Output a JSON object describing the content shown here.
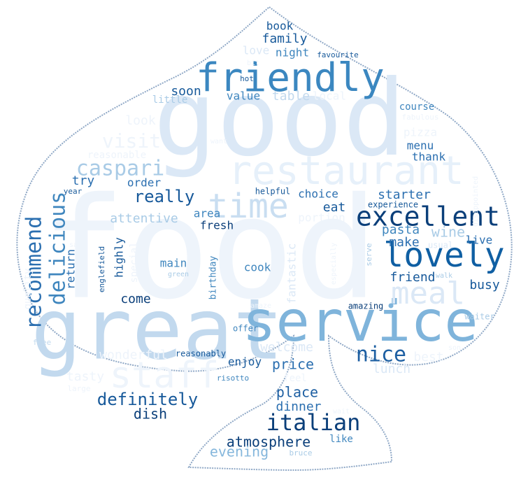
{
  "words": [
    {
      "text": "food",
      "size": 200,
      "color": "#eef4fb"
    },
    {
      "text": "good",
      "size": 150,
      "color": "#dbe8f6"
    },
    {
      "text": "great",
      "size": 120,
      "color": "#c2d9ee"
    },
    {
      "text": "service",
      "size": 80,
      "color": "#7fb4db"
    },
    {
      "text": "restaurant",
      "size": 56,
      "color": "#e6f0fa"
    },
    {
      "text": "staff",
      "size": 52,
      "color": "#eef4fb"
    },
    {
      "text": "friendly",
      "size": 56,
      "color": "#3b87c0"
    },
    {
      "text": "time",
      "size": 48,
      "color": "#c9def1"
    },
    {
      "text": "lovely",
      "size": 48,
      "color": "#0f5fa3"
    },
    {
      "text": "meal",
      "size": 44,
      "color": "#dbe8f6"
    },
    {
      "text": "excellent",
      "size": 38,
      "color": "#0b3f7a"
    },
    {
      "text": "recommend",
      "size": 30,
      "color": "#2b6fb0"
    },
    {
      "text": "delicious",
      "size": 30,
      "color": "#3f86be"
    },
    {
      "text": "caspari",
      "size": 30,
      "color": "#a9cbe6"
    },
    {
      "text": "italian",
      "size": 32,
      "color": "#0b3f7a"
    },
    {
      "text": "nice",
      "size": 30,
      "color": "#1d5fa2"
    },
    {
      "text": "definitely",
      "size": 24,
      "color": "#17599a"
    },
    {
      "text": "really",
      "size": 24,
      "color": "#17599a"
    },
    {
      "text": "visit",
      "size": 28,
      "color": "#eef4fb"
    },
    {
      "text": "atmosphere",
      "size": 20,
      "color": "#0b3f7a"
    },
    {
      "text": "evening",
      "size": 20,
      "color": "#85b7dc"
    },
    {
      "text": "place",
      "size": 20,
      "color": "#1d5fa2"
    },
    {
      "text": "dinner",
      "size": 18,
      "color": "#2b6fb0"
    },
    {
      "text": "dish",
      "size": 20,
      "color": "#0b3f7a"
    },
    {
      "text": "price",
      "size": 20,
      "color": "#2b6fb0"
    },
    {
      "text": "welcome",
      "size": 18,
      "color": "#dbe8f6"
    },
    {
      "text": "lunch",
      "size": 18,
      "color": "#dbe8f6"
    },
    {
      "text": "best",
      "size": 18,
      "color": "#eef4fb"
    },
    {
      "text": "enjoy",
      "size": 16,
      "color": "#17599a"
    },
    {
      "text": "wonderful",
      "size": 18,
      "color": "#eef4fb"
    },
    {
      "text": "tasty",
      "size": 18,
      "color": "#eef4fb"
    },
    {
      "text": "friend",
      "size": 18,
      "color": "#17599a"
    },
    {
      "text": "busy",
      "size": 18,
      "color": "#17599a"
    },
    {
      "text": "make",
      "size": 18,
      "color": "#2b6fb0"
    },
    {
      "text": "pasta",
      "size": 18,
      "color": "#3f86be"
    },
    {
      "text": "wine",
      "size": 20,
      "color": "#a9cbe6"
    },
    {
      "text": "live",
      "size": 16,
      "color": "#2b6fb0"
    },
    {
      "text": "starter",
      "size": 18,
      "color": "#2b6fb0"
    },
    {
      "text": "eat",
      "size": 18,
      "color": "#17599a"
    },
    {
      "text": "choice",
      "size": 16,
      "color": "#2b6fb0"
    },
    {
      "text": "portion",
      "size": 16,
      "color": "#eef4fb"
    },
    {
      "text": "attentive",
      "size": 18,
      "color": "#a9cbe6"
    },
    {
      "text": "area",
      "size": 16,
      "color": "#3f86be"
    },
    {
      "text": "fresh",
      "size": 16,
      "color": "#0b3f7a"
    },
    {
      "text": "try",
      "size": 18,
      "color": "#2b6fb0"
    },
    {
      "text": "order",
      "size": 16,
      "color": "#2b6fb0"
    },
    {
      "text": "menu",
      "size": 16,
      "color": "#2b6fb0"
    },
    {
      "text": "thank",
      "size": 16,
      "color": "#2b6fb0"
    },
    {
      "text": "pizza",
      "size": 16,
      "color": "#eef4fb"
    },
    {
      "text": "course",
      "size": 14,
      "color": "#3f86be"
    },
    {
      "text": "fabulous",
      "size": 11,
      "color": "#eef4fb"
    },
    {
      "text": "family",
      "size": 18,
      "color": "#17599a"
    },
    {
      "text": "book",
      "size": 16,
      "color": "#17599a"
    },
    {
      "text": "night",
      "size": 16,
      "color": "#3f86be"
    },
    {
      "text": "love",
      "size": 16,
      "color": "#dbe8f6"
    },
    {
      "text": "favourite",
      "size": 11,
      "color": "#17599a"
    },
    {
      "text": "bit",
      "size": 10,
      "color": "#eef4fb"
    },
    {
      "text": "hot",
      "size": 11,
      "color": "#17599a"
    },
    {
      "text": "soon",
      "size": 18,
      "color": "#17599a"
    },
    {
      "text": "value",
      "size": 16,
      "color": "#3f86be"
    },
    {
      "text": "table",
      "size": 18,
      "color": "#c2d9ee"
    },
    {
      "text": "local",
      "size": 16,
      "color": "#eef4fb"
    },
    {
      "text": "little",
      "size": 14,
      "color": "#a9cbe6"
    },
    {
      "text": "look",
      "size": 18,
      "color": "#eef4fb"
    },
    {
      "text": "reasonable",
      "size": 14,
      "color": "#eef4fb"
    },
    {
      "text": "want",
      "size": 10,
      "color": "#eef4fb"
    },
    {
      "text": "year",
      "size": 11,
      "color": "#17599a"
    },
    {
      "text": "helpful",
      "size": 12,
      "color": "#17599a"
    },
    {
      "text": "experience",
      "size": 12,
      "color": "#17599a"
    },
    {
      "text": "disappointed",
      "size": 10,
      "color": "#eef4fb"
    },
    {
      "text": "usual",
      "size": 12,
      "color": "#dbe8f6"
    },
    {
      "text": "main",
      "size": 16,
      "color": "#3f86be"
    },
    {
      "text": "cook",
      "size": 16,
      "color": "#3f86be"
    },
    {
      "text": "come",
      "size": 18,
      "color": "#0b3f7a"
    },
    {
      "text": "highly",
      "size": 16,
      "color": "#17599a"
    },
    {
      "text": "return",
      "size": 16,
      "color": "#2b6fb0"
    },
    {
      "text": "special",
      "size": 14,
      "color": "#eef4fb"
    },
    {
      "text": "englefield",
      "size": 11,
      "color": "#17599a"
    },
    {
      "text": "birthday",
      "size": 13,
      "color": "#3f86be"
    },
    {
      "text": "green",
      "size": 10,
      "color": "#a9cbe6"
    },
    {
      "text": "fantastic",
      "size": 16,
      "color": "#dbe8f6"
    },
    {
      "text": "serve",
      "size": 11,
      "color": "#a9cbe6"
    },
    {
      "text": "especially",
      "size": 10,
      "color": "#eef4fb"
    },
    {
      "text": "walk",
      "size": 10,
      "color": "#a9cbe6"
    },
    {
      "text": "amaze",
      "size": 10,
      "color": "#eef4fb"
    },
    {
      "text": "amazing",
      "size": 12,
      "color": "#0b3f7a"
    },
    {
      "text": "waiter",
      "size": 12,
      "color": "#a9cbe6"
    },
    {
      "text": "offer",
      "size": 12,
      "color": "#3f86be"
    },
    {
      "text": "say",
      "size": 10,
      "color": "#eef4fb"
    },
    {
      "text": "quality",
      "size": 14,
      "color": "#eef4fb"
    },
    {
      "text": "free",
      "size": 11,
      "color": "#c2d9ee"
    },
    {
      "text": "reasonably",
      "size": 12,
      "color": "#17599a"
    },
    {
      "text": "risotto",
      "size": 11,
      "color": "#3f86be"
    },
    {
      "text": "feel",
      "size": 14,
      "color": "#eef4fb"
    },
    {
      "text": "large",
      "size": 11,
      "color": "#eef4fb"
    },
    {
      "text": "like",
      "size": 14,
      "color": "#3f86be"
    },
    {
      "text": "bruce",
      "size": 11,
      "color": "#a9cbe6"
    },
    {
      "text": "wait",
      "size": 10,
      "color": "#eef4fb"
    },
    {
      "text": "son",
      "size": 10,
      "color": "#eef4fb"
    }
  ],
  "mask_outline_color": "#8fa8c6",
  "mask_fill_color": "#ffffff"
}
